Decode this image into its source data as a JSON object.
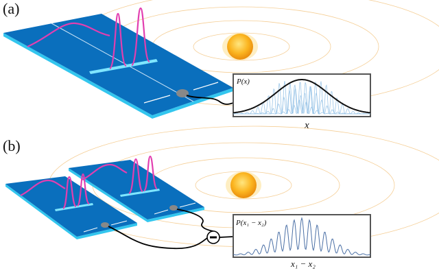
{
  "panel_a": {
    "label": "(a)",
    "inset": {
      "y_label": "P(x)",
      "x_label": "x"
    }
  },
  "panel_b": {
    "label": "(b)",
    "inset": {
      "y_label": "P(x₁ − x₂)",
      "x_label": "x₁ − x₂"
    }
  }
}
